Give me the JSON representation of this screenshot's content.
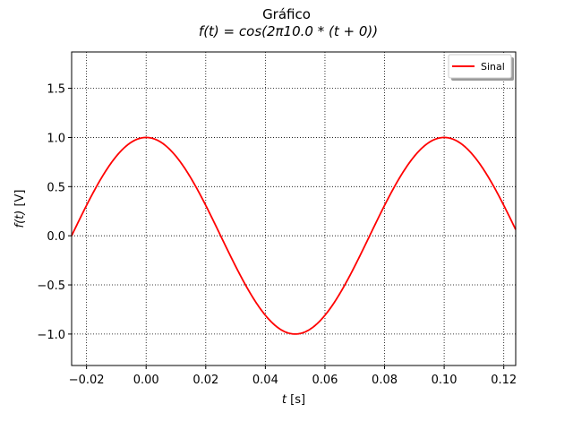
{
  "chart_data": {
    "type": "line",
    "title": "Gráfico",
    "subtitle": "f(t) = cos(2π10.0 * (t + 0))",
    "xlabel_var": "t",
    "xlabel_unit": " [s]",
    "ylabel_var": "f(t)",
    "ylabel_unit": " [V]",
    "xlim": [
      -0.025,
      0.124
    ],
    "ylim": [
      -1.32,
      1.87
    ],
    "xticks": [
      -0.02,
      0.0,
      0.02,
      0.04,
      0.06,
      0.08,
      0.1,
      0.12
    ],
    "xtick_labels": [
      "−0.02",
      "0.00",
      "0.02",
      "0.04",
      "0.06",
      "0.08",
      "0.10",
      "0.12"
    ],
    "yticks": [
      -1.0,
      -0.5,
      0.0,
      0.5,
      1.0,
      1.5
    ],
    "ytick_labels": [
      "−1.0",
      "−0.5",
      "0.0",
      "0.5",
      "1.0",
      "1.5"
    ],
    "grid": true,
    "legend_position": "top-right",
    "series": [
      {
        "name": "Sinal",
        "color": "#ff0000",
        "frequency_hz": 10.0,
        "amplitude": 1.0,
        "phase": 0,
        "t_start": -0.025,
        "t_end": 0.124,
        "x": [
          -0.025,
          -0.02,
          -0.015,
          -0.01,
          -0.005,
          0.0,
          0.005,
          0.01,
          0.015,
          0.02,
          0.025,
          0.03,
          0.035,
          0.04,
          0.045,
          0.05,
          0.055,
          0.06,
          0.065,
          0.07,
          0.075,
          0.08,
          0.085,
          0.09,
          0.095,
          0.1,
          0.105,
          0.11,
          0.115,
          0.12,
          0.124
        ],
        "y": [
          0.0,
          0.309,
          0.588,
          0.809,
          0.951,
          1.0,
          0.951,
          0.809,
          0.588,
          0.309,
          0.0,
          -0.309,
          -0.588,
          -0.809,
          -0.951,
          -1.0,
          -0.951,
          -0.809,
          -0.588,
          -0.309,
          0.0,
          0.309,
          0.588,
          0.809,
          0.951,
          1.0,
          0.951,
          0.809,
          0.588,
          0.309,
          0.063
        ]
      }
    ]
  }
}
